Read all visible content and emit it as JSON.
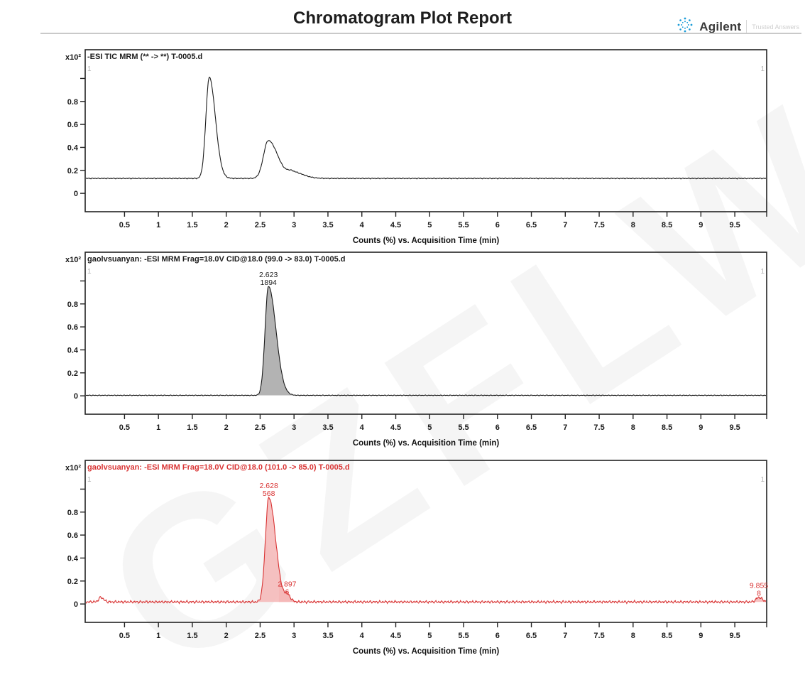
{
  "header": {
    "title": "Chromatogram Plot Report",
    "brand": "Agilent",
    "tagline": "Trusted Answers"
  },
  "watermark": "GZFLW",
  "axis": {
    "x_label": "Counts (%) vs. Acquisition Time (min)",
    "x_ticks": [
      "0.5",
      "1",
      "1.5",
      "2",
      "2.5",
      "3",
      "3.5",
      "4",
      "4.5",
      "5",
      "5.5",
      "6",
      "6.5",
      "7",
      "7.5",
      "8",
      "8.5",
      "9",
      "9.5"
    ],
    "x_range": [
      -0.08,
      9.97
    ],
    "y_scale_label": "x10²",
    "y_ticks": [
      {
        "v": 0.0,
        "label": "0"
      },
      {
        "v": 0.2,
        "label": "0.2"
      },
      {
        "v": 0.4,
        "label": "0.4"
      },
      {
        "v": 0.6,
        "label": "0.6"
      },
      {
        "v": 0.8,
        "label": "0.8"
      },
      {
        "v": 1.0,
        "label": ""
      }
    ],
    "y_range": [
      -0.16,
      1.25
    ]
  },
  "chart_data": [
    {
      "type": "line",
      "title": "-ESI TIC MRM (** -> **) T-0005.d",
      "title_color": "#1c1c1c",
      "color": "#1c1c1c",
      "fill_color": null,
      "panel_marker": "1",
      "baseline": 0.13,
      "noise_amp": 0.005,
      "seed": 1,
      "peaks": [
        {
          "rt": 1.75,
          "height": 0.88,
          "sigma_l": 0.05,
          "sigma_r": 0.09,
          "fill": false
        },
        {
          "rt": 2.62,
          "height": 0.33,
          "sigma_l": 0.07,
          "sigma_r": 0.14,
          "fill": false
        },
        {
          "rt": 2.97,
          "height": 0.055,
          "sigma_l": 0.07,
          "sigma_r": 0.16,
          "fill": false
        }
      ]
    },
    {
      "type": "line",
      "title": "gaolvsuanyan: -ESI MRM Frag=18.0V CID@18.0 (99.0 -> 83.0) T-0005.d",
      "title_color": "#1c1c1c",
      "color": "#1c1c1c",
      "fill_color": "#a6a6a6",
      "panel_marker": "1",
      "baseline": 0.004,
      "noise_amp": 0.004,
      "seed": 2,
      "peaks": [
        {
          "rt": 2.623,
          "height": 0.95,
          "sigma_l": 0.05,
          "sigma_r": 0.11,
          "fill": true,
          "labels": [
            "2.623",
            "1894"
          ]
        }
      ]
    },
    {
      "type": "line",
      "title": "gaolvsuanyan: -ESI MRM Frag=18.0V CID@18.0 (101.0 -> 85.0) T-0005.d",
      "title_color": "#d93434",
      "color": "#d93434",
      "fill_color": "#f5b6b6",
      "panel_marker": "1",
      "baseline": 0.018,
      "noise_amp": 0.014,
      "seed": 3,
      "peaks": [
        {
          "rt": 0.15,
          "height": 0.04,
          "sigma_l": 0.03,
          "sigma_r": 0.04,
          "fill": false
        },
        {
          "rt": 2.628,
          "height": 0.91,
          "sigma_l": 0.05,
          "sigma_r": 0.1,
          "fill": true,
          "labels": [
            "2.628",
            "568"
          ]
        },
        {
          "rt": 2.897,
          "height": 0.055,
          "sigma_l": 0.03,
          "sigma_r": 0.05,
          "fill": true,
          "labels": [
            "2.897",
            "6"
          ]
        },
        {
          "rt": 9.855,
          "height": 0.04,
          "sigma_l": 0.04,
          "sigma_r": 0.05,
          "fill": true,
          "labels": [
            "9.855",
            "8"
          ]
        }
      ]
    }
  ]
}
